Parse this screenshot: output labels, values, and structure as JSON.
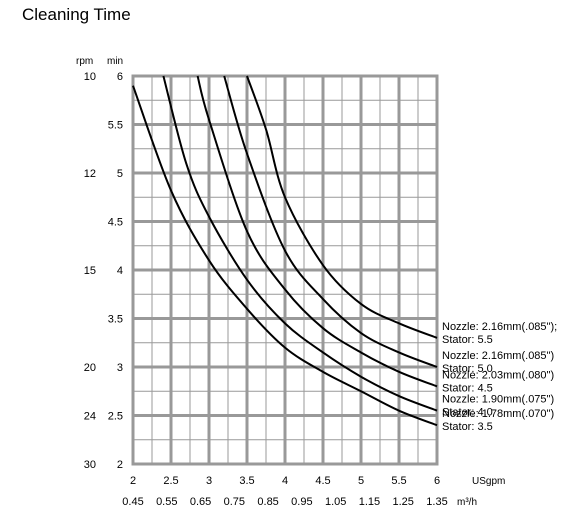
{
  "chart_data": {
    "type": "line",
    "title": "Cleaning Time",
    "y_units": [
      "rpm",
      "min"
    ],
    "x_units": [
      "USgpm",
      "m³/h"
    ],
    "xlim": [
      2,
      6
    ],
    "ylim": [
      2,
      6
    ],
    "x_ticks": [
      "2",
      "2.5",
      "3",
      "3.5",
      "4",
      "4.5",
      "5",
      "5.5",
      "6"
    ],
    "x_ticks_values": [
      2,
      2.5,
      3,
      3.5,
      4,
      4.5,
      5,
      5.5,
      6
    ],
    "x2_ticks": [
      "0.45",
      "0.55",
      "0.65",
      "0.75",
      "0.85",
      "0.95",
      "1.05",
      "1.15",
      "1.25",
      "1.35"
    ],
    "y_ticks": [
      "2",
      "2.5",
      "3",
      "3.5",
      "4",
      "4.5",
      "5",
      "5.5",
      "6"
    ],
    "y_ticks_values": [
      2,
      2.5,
      3,
      3.5,
      4,
      4.5,
      5,
      5.5,
      6
    ],
    "rpm_ticks": [
      {
        "label": "10",
        "min": 6
      },
      {
        "label": "12",
        "min": 5
      },
      {
        "label": "15",
        "min": 4
      },
      {
        "label": "20",
        "min": 3
      },
      {
        "label": "24",
        "min": 2.5
      },
      {
        "label": "30",
        "min": 2
      }
    ],
    "series": [
      {
        "name": [
          "Nozzle: 1.78mm(.070\")",
          "Stator: 3.5"
        ],
        "x": [
          2,
          2.5,
          3,
          3.5,
          4,
          4.5,
          5,
          5.5,
          6
        ],
        "y": [
          5.9,
          4.82,
          4.1,
          3.6,
          3.2,
          2.95,
          2.75,
          2.55,
          2.4
        ]
      },
      {
        "name": [
          "Nozzle: 1.90mm(.075\")",
          "Stator: 4.0"
        ],
        "x": [
          2.4,
          2.7,
          3,
          3.5,
          4,
          4.5,
          5,
          5.5,
          6
        ],
        "y": [
          6,
          5.1,
          4.55,
          3.9,
          3.45,
          3.15,
          2.9,
          2.7,
          2.55
        ]
      },
      {
        "name": [
          "Nozzle: 2.03mm(.080\")",
          "Stator: 4.5"
        ],
        "x": [
          2.85,
          3,
          3.5,
          4,
          4.5,
          5,
          5.5,
          6
        ],
        "y": [
          6,
          5.55,
          4.4,
          3.8,
          3.4,
          3.15,
          2.95,
          2.8
        ]
      },
      {
        "name": [
          "Nozzle: 2.16mm(.085\")",
          "Stator: 5.0"
        ],
        "x": [
          3.2,
          3.5,
          4,
          4.5,
          5,
          5.5,
          6
        ],
        "y": [
          6,
          5.2,
          4.2,
          3.7,
          3.35,
          3.15,
          3.0
        ]
      },
      {
        "name": [
          "Nozzle: 2.16mm(.085\");",
          "Stator: 5.5"
        ],
        "x": [
          3.5,
          3.75,
          4,
          4.5,
          5,
          5.5,
          6
        ],
        "y": [
          6,
          5.45,
          4.75,
          4.05,
          3.65,
          3.45,
          3.3
        ]
      }
    ],
    "grid": true,
    "legend": "right"
  }
}
